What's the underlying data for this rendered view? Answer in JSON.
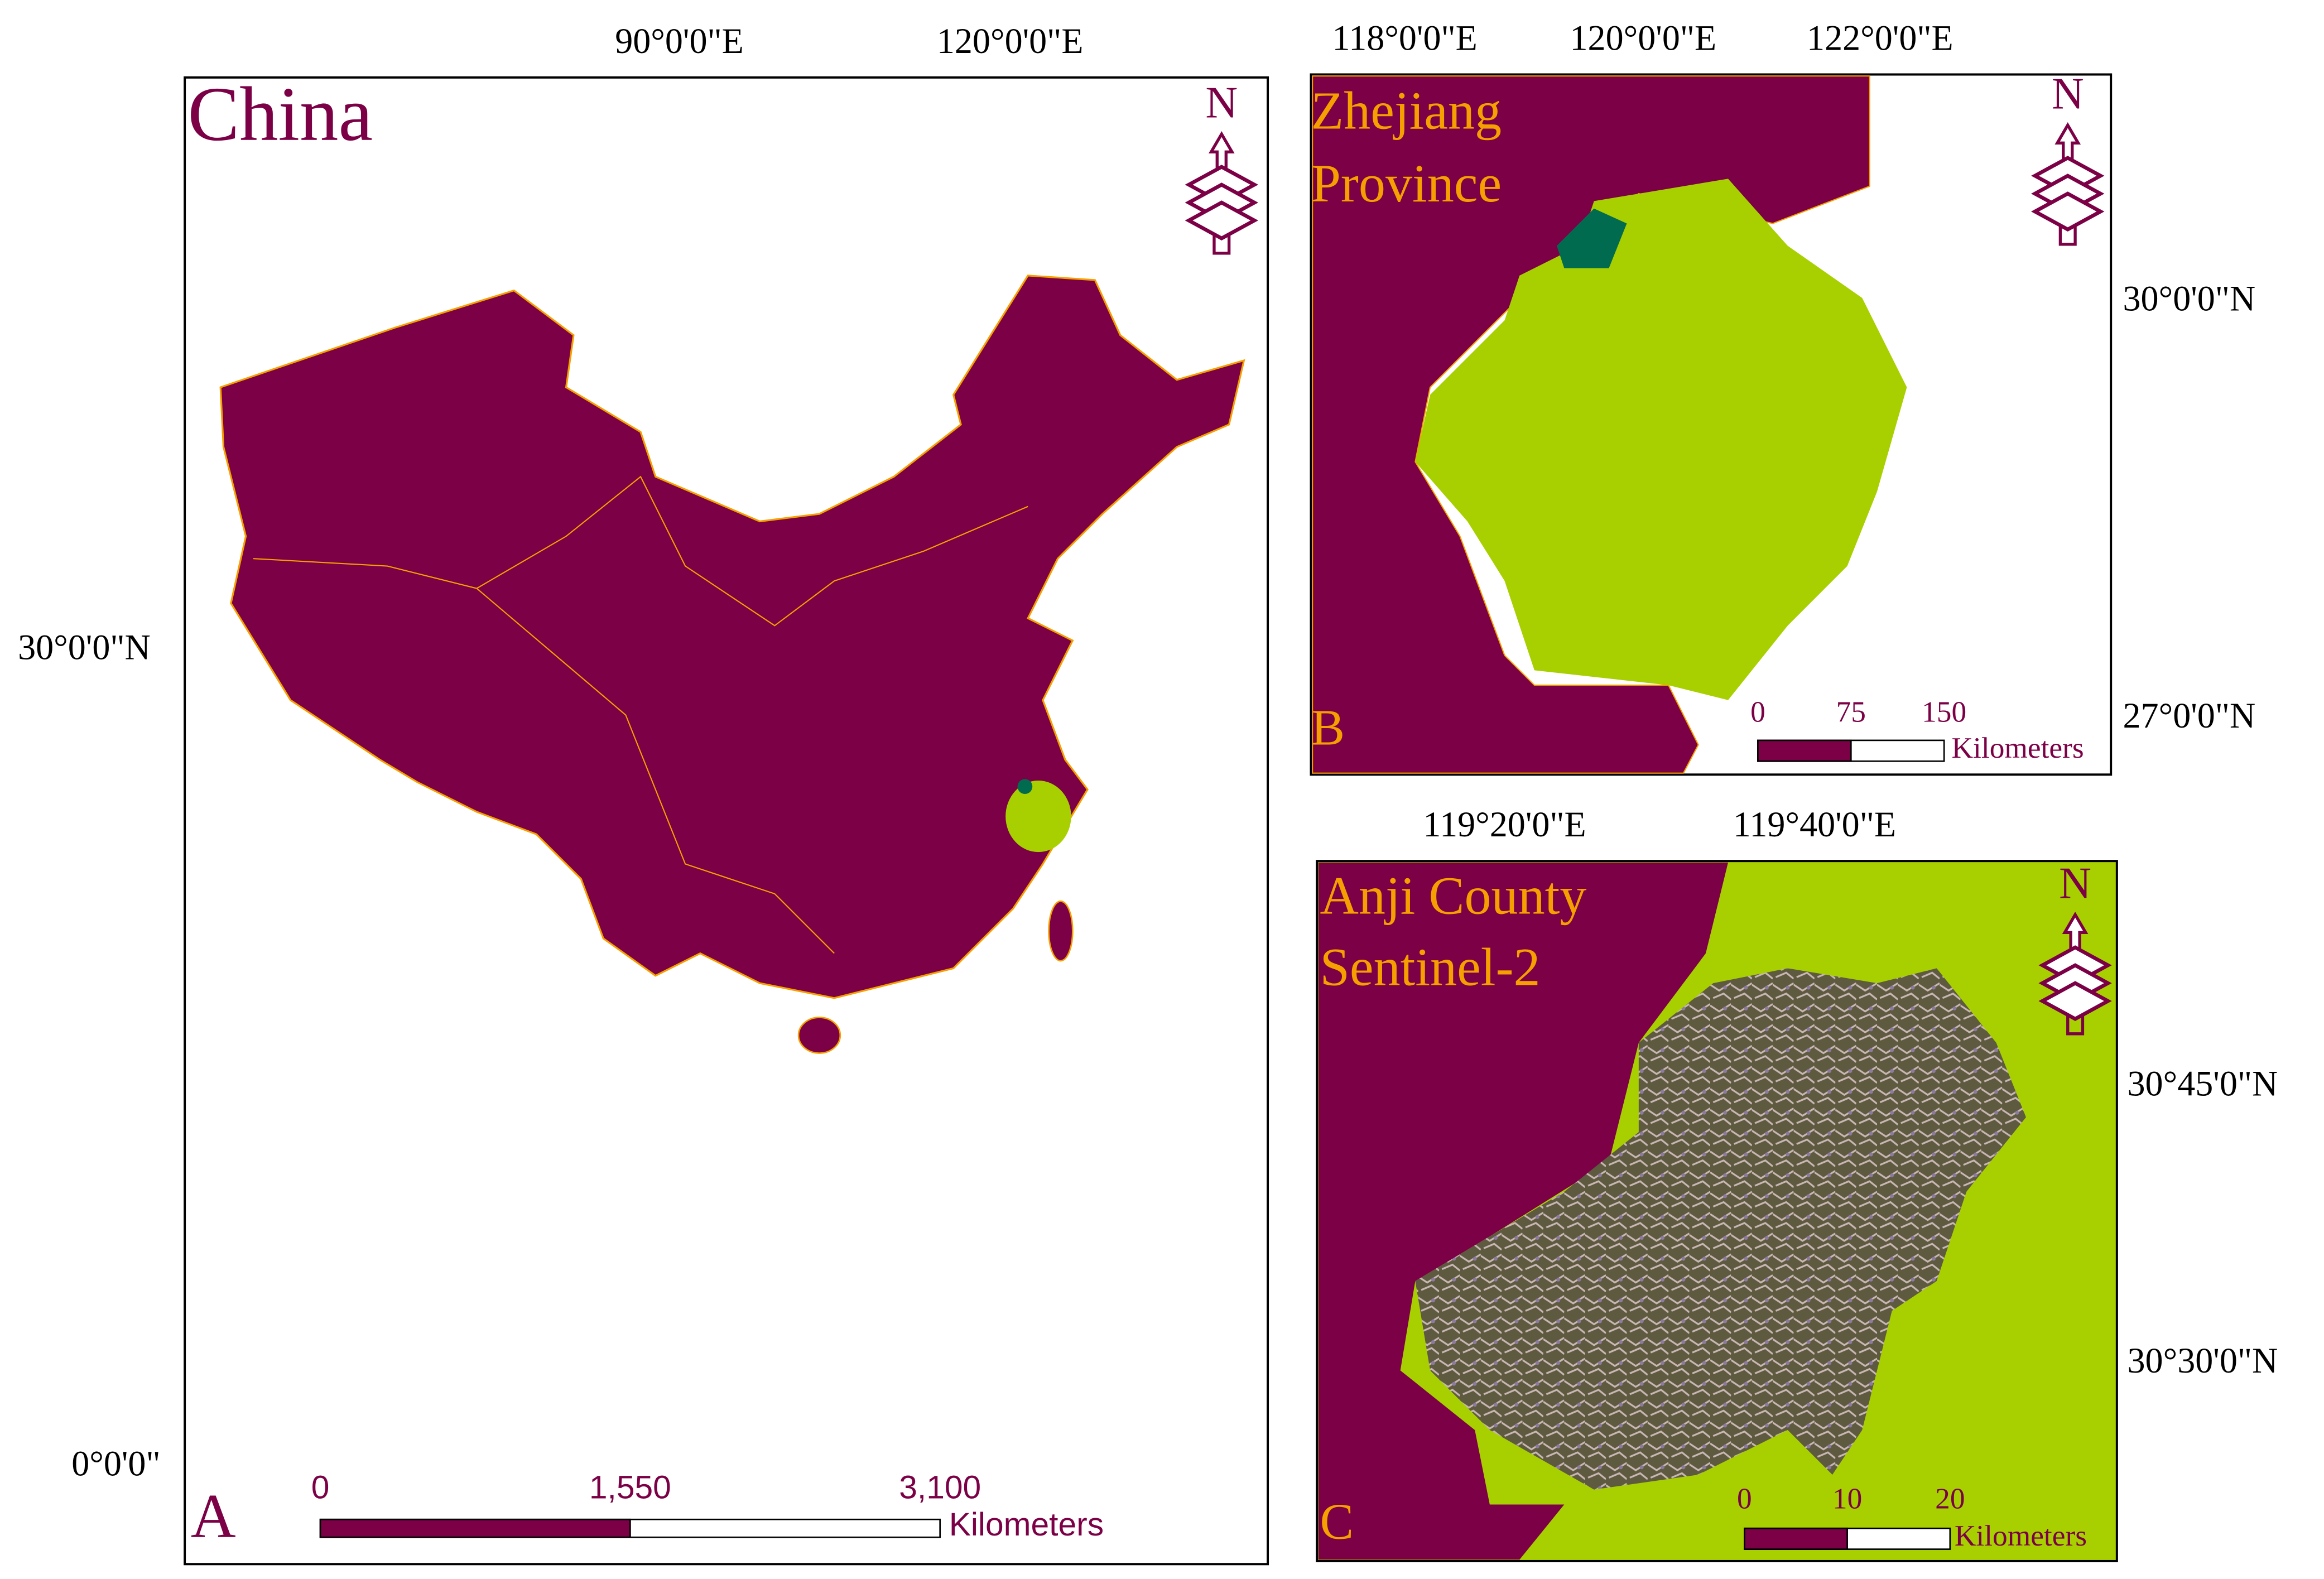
{
  "panels": [
    {
      "title": [
        "China"
      ],
      "label": "A",
      "north": "N",
      "lon_labels": [
        "90°0'0\"E",
        "120°0'0\"E"
      ],
      "lat_labels": [
        "30°0'0\"N",
        "0°0'0\""
      ],
      "scale": {
        "ticks": [
          "0",
          "1,550",
          "3,100"
        ],
        "unit": "Kilometers"
      }
    },
    {
      "title": [
        "Zhejiang",
        "Province"
      ],
      "label": "B",
      "north": "N",
      "lon_labels": [
        "118°0'0\"E",
        "120°0'0\"E",
        "122°0'0\"E"
      ],
      "lat_labels": [
        "30°0'0\"N",
        "27°0'0\"N"
      ],
      "scale": {
        "ticks": [
          "0",
          "75",
          "150"
        ],
        "unit": "Kilometers"
      }
    },
    {
      "title": [
        "Anji County",
        "Sentinel-2"
      ],
      "label": "C",
      "north": "N",
      "lon_labels": [
        "119°20'0\"E",
        "119°40'0\"E"
      ],
      "lat_labels": [
        "30°45'0\"N",
        "30°30'0\"N"
      ],
      "scale": {
        "ticks": [
          "0",
          "10",
          "20"
        ],
        "unit": "Kilometers"
      }
    }
  ]
}
